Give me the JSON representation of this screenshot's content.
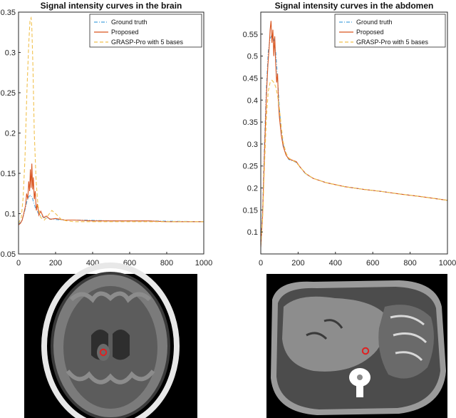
{
  "chart_data": [
    {
      "type": "line",
      "title": "Signal intensity curves in the brain",
      "xlim": [
        0,
        1000
      ],
      "ylim": [
        0.05,
        0.35
      ],
      "xticks": [
        "0",
        "200",
        "400",
        "600",
        "800",
        "1000"
      ],
      "yticks": [
        "0.05",
        "0.1",
        "0.15",
        "0.2",
        "0.25",
        "0.3",
        "0.35"
      ],
      "legend_position": "top-right",
      "grid": false,
      "series": [
        {
          "name": "Ground truth",
          "color": "#4aa3df",
          "style": "dash-dot",
          "x": [
            0,
            15,
            30,
            45,
            55,
            65,
            75,
            90,
            110,
            140,
            180,
            250,
            350,
            500,
            700,
            1000
          ],
          "y": [
            0.087,
            0.09,
            0.1,
            0.115,
            0.121,
            0.123,
            0.119,
            0.108,
            0.099,
            0.095,
            0.093,
            0.092,
            0.092,
            0.091,
            0.091,
            0.09
          ]
        },
        {
          "name": "Proposed",
          "color": "#d9541e",
          "style": "solid",
          "x": [
            0,
            10,
            20,
            30,
            38,
            44,
            50,
            55,
            60,
            64,
            68,
            72,
            76,
            80,
            85,
            90,
            96,
            102,
            110,
            120,
            135,
            150,
            170,
            200,
            250,
            300,
            400,
            500,
            600,
            700,
            800,
            900,
            1000
          ],
          "y": [
            0.086,
            0.088,
            0.092,
            0.102,
            0.11,
            0.125,
            0.118,
            0.14,
            0.128,
            0.155,
            0.132,
            0.162,
            0.13,
            0.145,
            0.118,
            0.128,
            0.104,
            0.112,
            0.098,
            0.103,
            0.095,
            0.097,
            0.093,
            0.094,
            0.092,
            0.092,
            0.091,
            0.091,
            0.091,
            0.091,
            0.09,
            0.09,
            0.09
          ]
        },
        {
          "name": "GRASP-Pro with 5 bases",
          "color": "#f1c14e",
          "style": "dashed",
          "x": [
            0,
            15,
            25,
            35,
            45,
            55,
            62,
            68,
            72,
            78,
            85,
            95,
            105,
            120,
            140,
            160,
            180,
            200,
            230,
            260,
            300,
            400,
            500,
            600,
            700,
            800,
            900,
            1000
          ],
          "y": [
            0.088,
            0.095,
            0.12,
            0.17,
            0.25,
            0.31,
            0.34,
            0.343,
            0.33,
            0.28,
            0.2,
            0.14,
            0.11,
            0.095,
            0.092,
            0.098,
            0.104,
            0.1,
            0.093,
            0.091,
            0.09,
            0.09,
            0.09,
            0.09,
            0.09,
            0.09,
            0.09,
            0.09
          ]
        }
      ],
      "image": {
        "kind": "axial brain MRI slice",
        "marker_color": "#e02020"
      }
    },
    {
      "type": "line",
      "title": "Signal intensity curves in the abdomen",
      "xlim": [
        0,
        1000
      ],
      "ylim": [
        0.05,
        0.6
      ],
      "xticks": [
        "0",
        "200",
        "400",
        "600",
        "800",
        "1000"
      ],
      "yticks": [
        "0.1",
        "0.15",
        "0.2",
        "0.25",
        "0.3",
        "0.35",
        "0.4",
        "0.45",
        "0.5",
        "0.55"
      ],
      "legend_position": "top-right",
      "grid": false,
      "series": [
        {
          "name": "Ground truth",
          "color": "#4aa3df",
          "style": "dash-dot",
          "x": [
            0,
            10,
            20,
            30,
            40,
            50,
            60,
            70,
            80,
            90,
            100,
            110,
            120,
            135,
            150,
            170,
            190,
            210,
            240,
            280,
            350,
            450,
            550,
            650,
            750,
            850,
            1000
          ],
          "y": [
            0.07,
            0.15,
            0.3,
            0.43,
            0.51,
            0.54,
            0.548,
            0.538,
            0.51,
            0.45,
            0.38,
            0.33,
            0.3,
            0.275,
            0.265,
            0.262,
            0.258,
            0.248,
            0.232,
            0.222,
            0.212,
            0.203,
            0.197,
            0.192,
            0.186,
            0.181,
            0.172
          ]
        },
        {
          "name": "Proposed",
          "color": "#d9541e",
          "style": "solid",
          "x": [
            0,
            10,
            20,
            30,
            38,
            45,
            50,
            55,
            60,
            65,
            70,
            75,
            80,
            85,
            90,
            95,
            100,
            110,
            120,
            135,
            150,
            170,
            190,
            210,
            240,
            280,
            350,
            450,
            550,
            650,
            750,
            850,
            1000
          ],
          "y": [
            0.065,
            0.14,
            0.28,
            0.41,
            0.48,
            0.52,
            0.56,
            0.58,
            0.53,
            0.56,
            0.5,
            0.545,
            0.48,
            0.44,
            0.46,
            0.39,
            0.36,
            0.32,
            0.295,
            0.275,
            0.266,
            0.263,
            0.26,
            0.248,
            0.233,
            0.222,
            0.212,
            0.203,
            0.197,
            0.192,
            0.186,
            0.181,
            0.172
          ]
        },
        {
          "name": "GRASP-Pro with 5 bases",
          "color": "#f1c14e",
          "style": "dashed",
          "x": [
            0,
            10,
            20,
            30,
            40,
            50,
            60,
            70,
            80,
            90,
            100,
            110,
            120,
            135,
            150,
            170,
            190,
            210,
            240,
            280,
            350,
            450,
            550,
            650,
            750,
            850,
            1000
          ],
          "y": [
            0.07,
            0.13,
            0.25,
            0.36,
            0.42,
            0.44,
            0.445,
            0.44,
            0.43,
            0.41,
            0.38,
            0.34,
            0.305,
            0.28,
            0.268,
            0.263,
            0.258,
            0.248,
            0.233,
            0.222,
            0.212,
            0.203,
            0.197,
            0.192,
            0.186,
            0.181,
            0.172
          ]
        }
      ],
      "image": {
        "kind": "axial abdominal CT slice",
        "marker_color": "#e02020"
      }
    }
  ]
}
